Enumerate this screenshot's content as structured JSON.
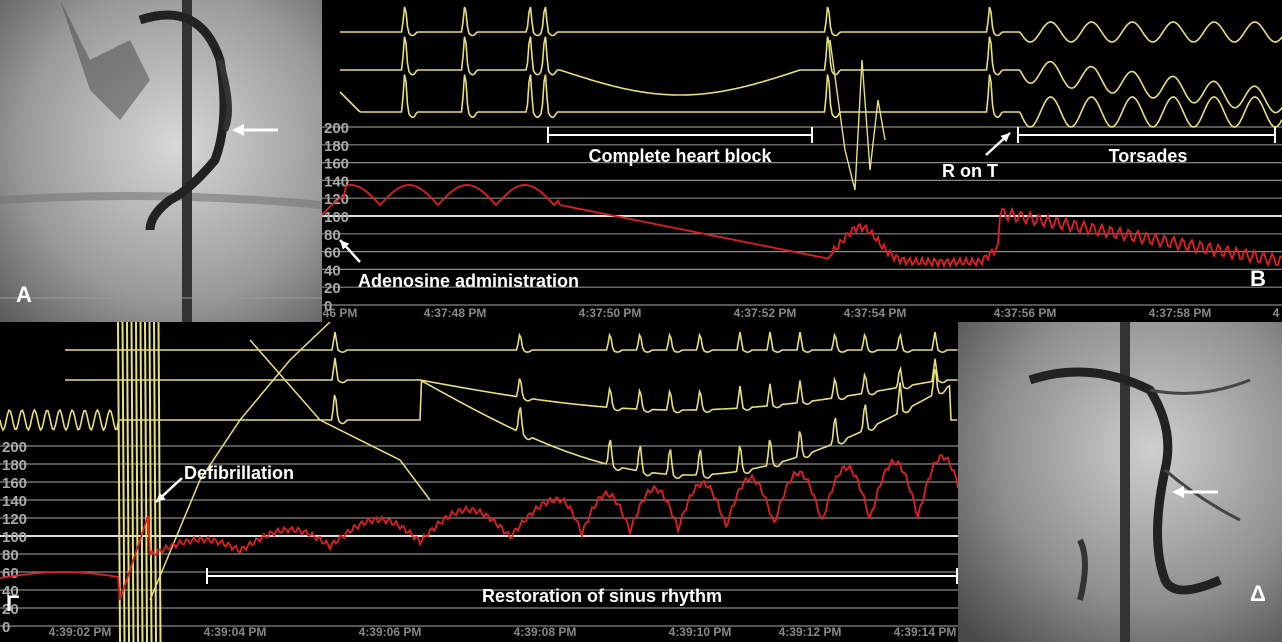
{
  "panels": {
    "a": {
      "label": "A"
    },
    "b": {
      "label": "B",
      "y_ticks": [
        "200",
        "180",
        "160",
        "140",
        "120",
        "100",
        "80",
        "60",
        "40",
        "20",
        "0"
      ],
      "time_labels": [
        "46 PM",
        "4:37:48 PM",
        "4:37:50 PM",
        "4:37:52 PM",
        "4:37:54 PM",
        "4:37:56 PM",
        "4:37:58 PM",
        "4"
      ],
      "annotations": {
        "heart_block": "Complete heart block",
        "r_on_t": "R on T",
        "torsades": "Torsades",
        "adenosine": "Adenosine administration"
      }
    },
    "c": {
      "label": "Γ",
      "y_ticks": [
        "200",
        "180",
        "160",
        "140",
        "120",
        "100",
        "80",
        "60",
        "40",
        "20",
        "0"
      ],
      "time_labels": [
        "4:39:02 PM",
        "4:39:04 PM",
        "4:39:06 PM",
        "4:39:08 PM",
        "4:39:10 PM",
        "4:39:12 PM",
        "4:39:14 PM"
      ],
      "annotations": {
        "defibrillation": "Defibrillation",
        "restoration": "Restoration of sinus rhythm"
      }
    },
    "d": {
      "label": "Δ"
    }
  }
}
